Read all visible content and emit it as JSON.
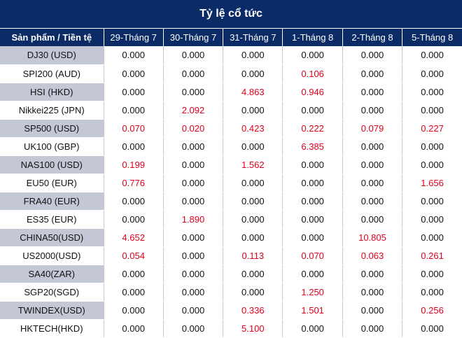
{
  "title": "Tỷ lệ cổ tức",
  "header": {
    "product": "Sản phẩm / Tiền tệ",
    "dates": [
      "29-Tháng 7",
      "30-Tháng 7",
      "31-Tháng 7",
      "1-Tháng 8",
      "2-Tháng 8",
      "5-Tháng 8"
    ]
  },
  "colors": {
    "header_bg": "#0b2b66",
    "shade": "#c4c8d6",
    "positive": "#e0001b"
  },
  "rows": [
    {
      "product": "DJ30 (USD)",
      "values": [
        "0.000",
        "0.000",
        "0.000",
        "0.000",
        "0.000",
        "0.000"
      ]
    },
    {
      "product": "SPI200 (AUD)",
      "values": [
        "0.000",
        "0.000",
        "0.000",
        "0.106",
        "0.000",
        "0.000"
      ]
    },
    {
      "product": "HSI (HKD)",
      "values": [
        "0.000",
        "0.000",
        "4.863",
        "0.946",
        "0.000",
        "0.000"
      ]
    },
    {
      "product": "Nikkei225 (JPN)",
      "values": [
        "0.000",
        "2.092",
        "0.000",
        "0.000",
        "0.000",
        "0.000"
      ]
    },
    {
      "product": "SP500 (USD)",
      "values": [
        "0.070",
        "0.020",
        "0.423",
        "0.222",
        "0.079",
        "0.227"
      ]
    },
    {
      "product": "UK100 (GBP)",
      "values": [
        "0.000",
        "0.000",
        "0.000",
        "6.385",
        "0.000",
        "0.000"
      ]
    },
    {
      "product": "NAS100 (USD)",
      "values": [
        "0.199",
        "0.000",
        "1.562",
        "0.000",
        "0.000",
        "0.000"
      ]
    },
    {
      "product": "EU50 (EUR)",
      "values": [
        "0.776",
        "0.000",
        "0.000",
        "0.000",
        "0.000",
        "1.656"
      ]
    },
    {
      "product": "FRA40 (EUR)",
      "values": [
        "0.000",
        "0.000",
        "0.000",
        "0.000",
        "0.000",
        "0.000"
      ]
    },
    {
      "product": "ES35 (EUR)",
      "values": [
        "0.000",
        "1.890",
        "0.000",
        "0.000",
        "0.000",
        "0.000"
      ]
    },
    {
      "product": "CHINA50(USD)",
      "values": [
        "4.652",
        "0.000",
        "0.000",
        "0.000",
        "10.805",
        "0.000"
      ]
    },
    {
      "product": "US2000(USD)",
      "values": [
        "0.054",
        "0.000",
        "0.113",
        "0.070",
        "0.063",
        "0.261"
      ]
    },
    {
      "product": "SA40(ZAR)",
      "values": [
        "0.000",
        "0.000",
        "0.000",
        "0.000",
        "0.000",
        "0.000"
      ]
    },
    {
      "product": "SGP20(SGD)",
      "values": [
        "0.000",
        "0.000",
        "0.000",
        "1.250",
        "0.000",
        "0.000"
      ]
    },
    {
      "product": "TWINDEX(USD)",
      "values": [
        "0.000",
        "0.000",
        "0.336",
        "1.501",
        "0.000",
        "0.256"
      ]
    },
    {
      "product": "HKTECH(HKD)",
      "values": [
        "0.000",
        "0.000",
        "5.100",
        "0.000",
        "0.000",
        "0.000"
      ]
    }
  ]
}
